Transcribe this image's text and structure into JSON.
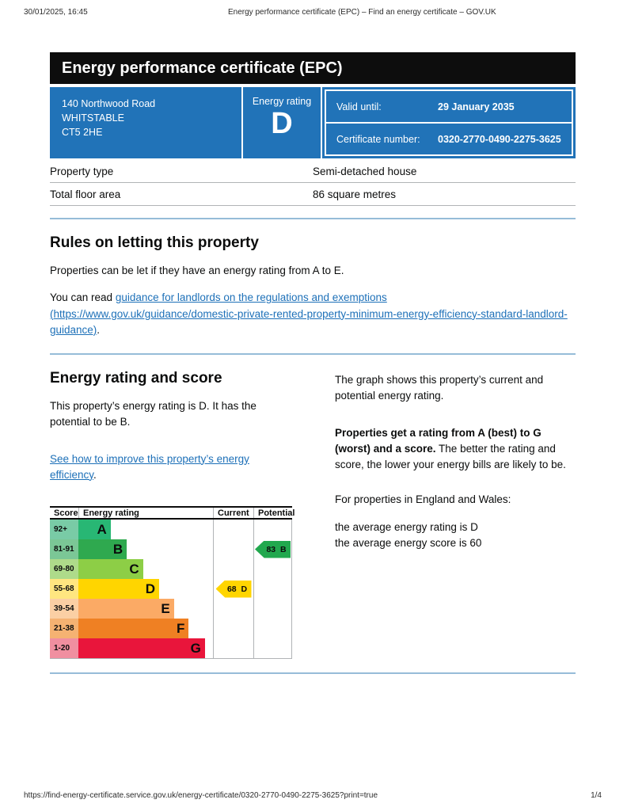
{
  "print_header": {
    "datetime": "30/01/2025, 16:45",
    "doc_title": "Energy performance certificate (EPC) – Find an energy certificate – GOV.UK"
  },
  "banner": {
    "title": "Energy performance certificate (EPC)"
  },
  "summary": {
    "address_line1": "140 Northwood Road",
    "address_line2": "WHITSTABLE",
    "address_line3": "CT5 2HE",
    "energy_rating_label": "Energy rating",
    "energy_rating": "D",
    "valid_until_label": "Valid until:",
    "valid_until_value": "29 January 2035",
    "certificate_number_label": "Certificate number:",
    "certificate_number_value": "0320-2770-0490-2275-3625",
    "box_color": "#2173b8"
  },
  "property_table": {
    "rows": [
      {
        "label": "Property type",
        "value": "Semi-detached house"
      },
      {
        "label": "Total floor area",
        "value": "86 square metres"
      }
    ]
  },
  "rules_section": {
    "heading": "Rules on letting this property",
    "paragraph1": "Properties can be let if they have an energy rating from A to E.",
    "paragraph2_prefix": "You can read ",
    "paragraph2_link": "guidance for landlords on the regulations and exemptions (https://www.gov.uk/guidance/domestic-private-rented-property-minimum-energy-efficiency-standard-landlord-guidance)",
    "paragraph2_suffix": "."
  },
  "rating_section": {
    "heading": "Energy rating and score",
    "paragraph1": "This property’s energy rating is D. It has the potential to be B.",
    "improve_link": "See how to improve this property’s energy efficiency",
    "improve_suffix": ".",
    "right_paragraph1": "The graph shows this property’s current and potential energy rating.",
    "right_paragraph2_bold": "Properties get a rating from A (best) to G (worst) and a score.",
    "right_paragraph2_rest": " The better the rating and score, the lower your energy bills are likely to be.",
    "right_paragraph3": "For properties in England and Wales:",
    "right_line1": "the average energy rating is D",
    "right_line2": "the average energy score is 60"
  },
  "chart_data": {
    "type": "bar",
    "title": "Energy rating and score graph",
    "columns": {
      "score": "Score",
      "rating": "Energy rating",
      "current": "Current",
      "potential": "Potential"
    },
    "bands": [
      {
        "score": "92+",
        "letter": "A",
        "bar_color": "#28b774",
        "score_color": "#79cba6",
        "width_pct": 24
      },
      {
        "score": "81-91",
        "letter": "B",
        "bar_color": "#2fa94f",
        "score_color": "#7bc796",
        "width_pct": 36
      },
      {
        "score": "69-80",
        "letter": "C",
        "bar_color": "#8dce46",
        "score_color": "#aedb8a",
        "width_pct": 48
      },
      {
        "score": "55-68",
        "letter": "D",
        "bar_color": "#ffd500",
        "score_color": "#ffe680",
        "width_pct": 60
      },
      {
        "score": "39-54",
        "letter": "E",
        "bar_color": "#fbaa65",
        "score_color": "#fbcfa4",
        "width_pct": 71
      },
      {
        "score": "21-38",
        "letter": "F",
        "bar_color": "#ef8023",
        "score_color": "#f5b272",
        "width_pct": 82
      },
      {
        "score": "1-20",
        "letter": "G",
        "bar_color": "#e9153b",
        "score_color": "#f08fa0",
        "width_pct": 94
      }
    ],
    "current": {
      "score": 68,
      "band": "D",
      "label": "68  D",
      "color": "#ffd500",
      "row_index": 3
    },
    "potential": {
      "score": 83,
      "band": "B",
      "label": "83  B",
      "color": "#21a84e",
      "row_index": 1
    }
  },
  "footer": {
    "url": "https://find-energy-certificate.service.gov.uk/energy-certificate/0320-2770-0490-2275-3625?print=true",
    "page": "1/4"
  },
  "colors": {
    "govuk_blue": "#1d70b8",
    "divider_blue": "#96bcd8",
    "banner_black": "#0d0d0d",
    "border_gray": "#b1b4b6"
  }
}
